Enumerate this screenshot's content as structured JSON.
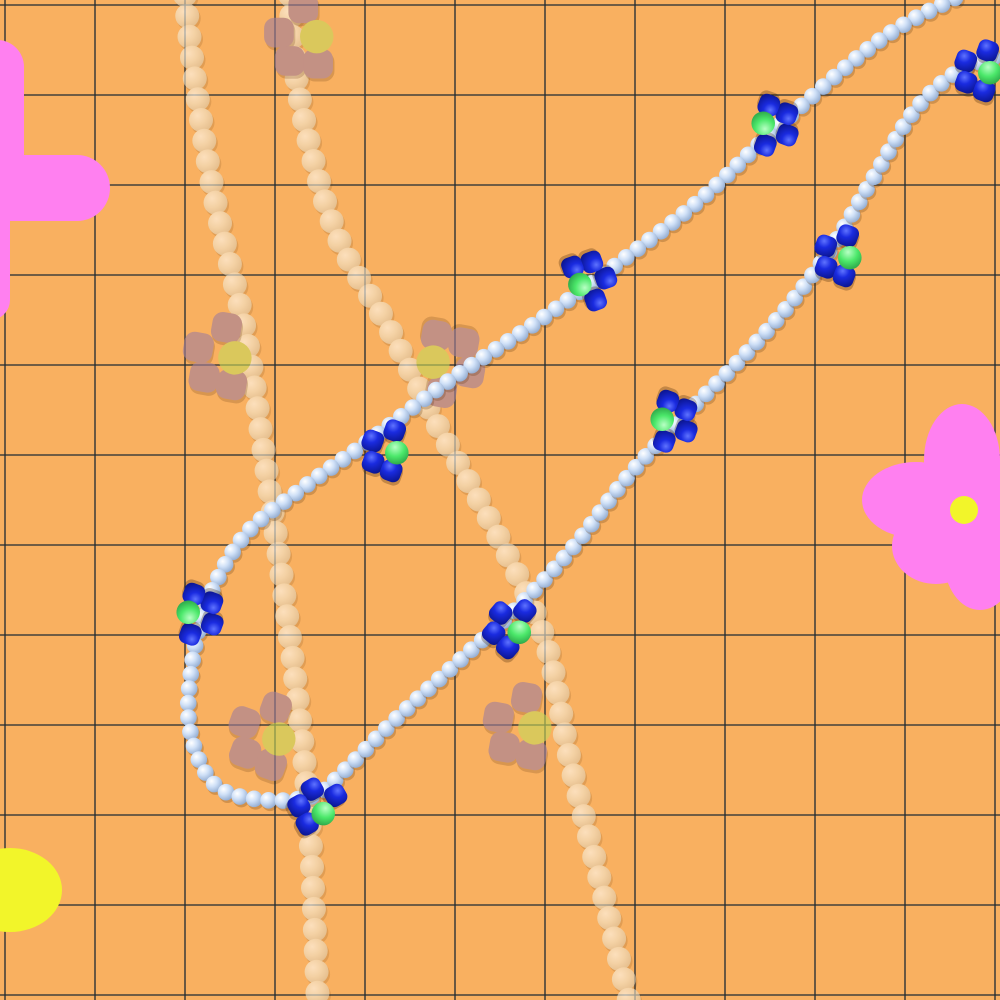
{
  "scene": {
    "subject": "necklace",
    "colors": {
      "background": "#F9B060",
      "grid_line": "#1E2A33",
      "sticker_pink": "#FF80F0",
      "sticker_yellow": "#F2F52A",
      "pearl": "#CFE0F7",
      "pearl_highlight": "#FFFFFF",
      "pearl_shade": "#8FA9CF",
      "petal_blue": "#1A2BE0",
      "petal_blue_dark": "#0B1590",
      "center_green": "#4BE86A",
      "ghost_pearl": "#F1E6CE",
      "ghost_petal": "#A37F9A",
      "ghost_center": "#C8D75A"
    }
  }
}
